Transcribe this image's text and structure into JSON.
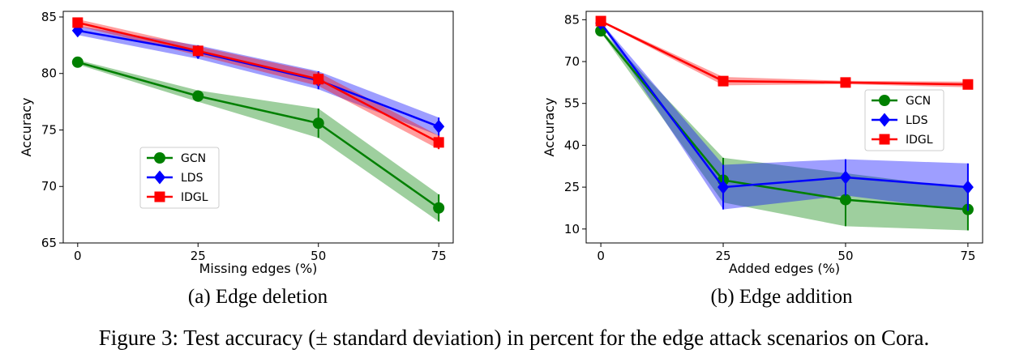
{
  "figure_caption": "Figure 3: Test accuracy (± standard deviation) in percent for the edge attack scenarios on Cora.",
  "colors": {
    "GCN": "#008000",
    "LDS": "#0000ff",
    "IDGL": "#ff0000"
  },
  "chart_data": [
    {
      "type": "line",
      "subtitle": "(a) Edge deletion",
      "xlabel": "Missing edges (%)",
      "ylabel": "Accuracy",
      "x": [
        0,
        25,
        50,
        75
      ],
      "xlim": [
        -3,
        78
      ],
      "ylim": [
        65,
        85.5
      ],
      "yticks": [
        65,
        70,
        75,
        80,
        85
      ],
      "xticks": [
        0,
        25,
        50,
        75
      ],
      "legend_position": "lower-left",
      "series": [
        {
          "name": "GCN",
          "marker": "circle",
          "values": [
            81.0,
            78.0,
            75.6,
            68.1
          ],
          "std": [
            0.2,
            0.5,
            1.3,
            1.2
          ]
        },
        {
          "name": "LDS",
          "marker": "diamond",
          "values": [
            83.8,
            81.9,
            79.4,
            75.3
          ],
          "std": [
            0.4,
            0.6,
            0.8,
            0.8
          ]
        },
        {
          "name": "IDGL",
          "marker": "square",
          "values": [
            84.5,
            82.0,
            79.5,
            73.9
          ],
          "std": [
            0.3,
            0.4,
            0.6,
            0.6
          ]
        }
      ]
    },
    {
      "type": "line",
      "subtitle": "(b) Edge addition",
      "xlabel": "Added edges (%)",
      "ylabel": "Accuracy",
      "x": [
        0,
        25,
        50,
        75
      ],
      "xlim": [
        -3,
        78
      ],
      "ylim": [
        5,
        88
      ],
      "yticks": [
        10,
        25,
        40,
        55,
        70,
        85
      ],
      "xticks": [
        0,
        25,
        50,
        75
      ],
      "legend_position": "upper-right",
      "series": [
        {
          "name": "GCN",
          "marker": "circle",
          "values": [
            81.0,
            27.5,
            20.5,
            17.0
          ],
          "std": [
            0.5,
            8.0,
            9.5,
            7.5
          ]
        },
        {
          "name": "LDS",
          "marker": "diamond",
          "values": [
            83.8,
            25.0,
            28.5,
            25.0
          ],
          "std": [
            0.4,
            8.0,
            6.5,
            8.5
          ]
        },
        {
          "name": "IDGL",
          "marker": "square",
          "values": [
            84.5,
            63.0,
            62.5,
            61.8
          ],
          "std": [
            0.3,
            1.5,
            0.6,
            1.0
          ]
        }
      ]
    }
  ]
}
